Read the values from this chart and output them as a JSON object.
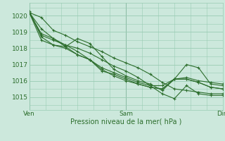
{
  "bg_color": "#cce8dc",
  "plot_bg_color": "#cce8dc",
  "grid_color": "#99ccb3",
  "line_color": "#2d6e2d",
  "marker_color": "#2d6e2d",
  "ylabel_ticks": [
    1015,
    1016,
    1017,
    1018,
    1019,
    1020
  ],
  "xlim": [
    0,
    48
  ],
  "ylim": [
    1014.2,
    1020.8
  ],
  "xlabel": "Pression niveau de la mer( hPa )",
  "xtick_positions": [
    0,
    24,
    48
  ],
  "xtick_labels": [
    "Ven",
    "Sam",
    "Dim"
  ],
  "series": [
    [
      0,
      1020.2,
      3,
      1019.9,
      6,
      1019.1,
      9,
      1018.8,
      12,
      1018.4,
      15,
      1018.1,
      18,
      1017.8,
      21,
      1017.4,
      24,
      1017.1,
      27,
      1016.8,
      30,
      1016.4,
      33,
      1015.9,
      36,
      1015.5,
      39,
      1015.4,
      42,
      1015.3,
      45,
      1015.2,
      48,
      1015.2
    ],
    [
      0,
      1020.2,
      3,
      1019.2,
      6,
      1018.6,
      9,
      1018.2,
      12,
      1018.0,
      15,
      1017.7,
      18,
      1017.3,
      21,
      1016.9,
      24,
      1016.6,
      27,
      1016.2,
      30,
      1015.7,
      33,
      1015.2,
      36,
      1014.9,
      39,
      1015.7,
      42,
      1015.2,
      45,
      1015.1,
      48,
      1015.1
    ],
    [
      0,
      1020.3,
      3,
      1018.7,
      6,
      1018.2,
      9,
      1018.1,
      12,
      1018.6,
      15,
      1018.3,
      18,
      1017.5,
      21,
      1016.7,
      24,
      1016.3,
      27,
      1016.0,
      30,
      1015.8,
      33,
      1015.4,
      36,
      1016.1,
      39,
      1016.2,
      42,
      1016.0,
      45,
      1015.9,
      48,
      1015.8
    ],
    [
      0,
      1020.2,
      3,
      1018.5,
      6,
      1018.2,
      9,
      1018.0,
      12,
      1017.6,
      15,
      1017.3,
      18,
      1016.8,
      21,
      1016.5,
      24,
      1016.2,
      27,
      1015.9,
      30,
      1015.7,
      33,
      1015.7,
      36,
      1016.1,
      39,
      1017.0,
      42,
      1016.8,
      45,
      1015.8,
      48,
      1015.7
    ],
    [
      0,
      1020.2,
      3,
      1018.8,
      6,
      1018.5,
      9,
      1018.2,
      12,
      1017.8,
      15,
      1017.3,
      18,
      1016.7,
      21,
      1016.3,
      24,
      1016.0,
      27,
      1015.8,
      30,
      1015.6,
      33,
      1015.5,
      36,
      1016.1,
      39,
      1016.1,
      42,
      1015.9,
      45,
      1015.6,
      48,
      1015.5
    ],
    [
      0,
      1020.2,
      3,
      1018.9,
      6,
      1018.6,
      9,
      1018.1,
      12,
      1017.6,
      15,
      1017.3,
      18,
      1016.6,
      21,
      1016.4,
      24,
      1016.1,
      27,
      1015.8,
      30,
      1015.6,
      33,
      1015.5,
      36,
      1016.1,
      39,
      1016.1,
      42,
      1015.9,
      45,
      1015.6,
      48,
      1015.5
    ]
  ]
}
